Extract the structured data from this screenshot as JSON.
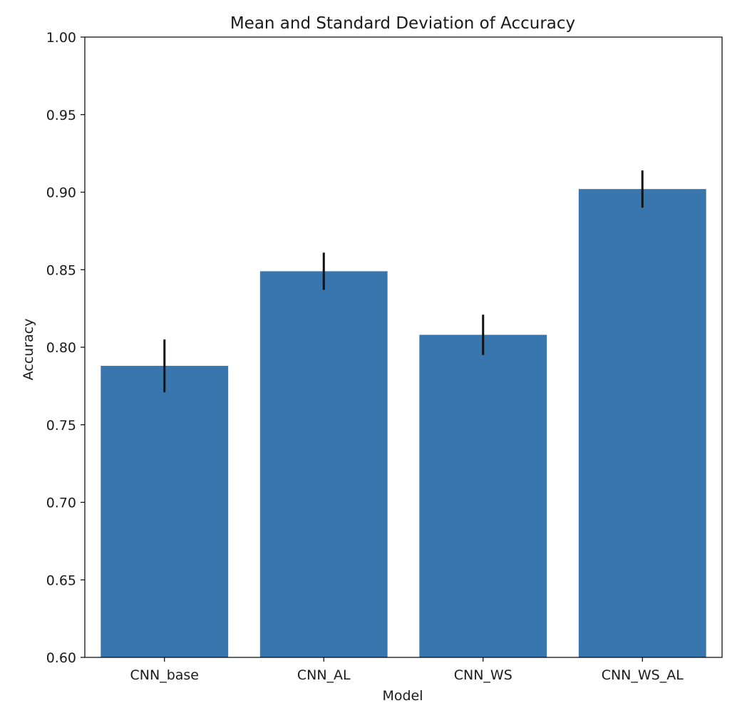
{
  "chart_data": {
    "type": "bar",
    "title": "Mean and Standard Deviation of Accuracy",
    "xlabel": "Model",
    "ylabel": "Accuracy",
    "categories": [
      "CNN_base",
      "CNN_AL",
      "CNN_WS",
      "CNN_WS_AL"
    ],
    "values": [
      0.788,
      0.849,
      0.808,
      0.902
    ],
    "errors": [
      0.017,
      0.012,
      0.013,
      0.012
    ],
    "ylim": [
      0.6,
      1.0
    ],
    "yticks": [
      "0.60",
      "0.65",
      "0.70",
      "0.75",
      "0.80",
      "0.85",
      "0.90",
      "0.95",
      "1.00"
    ],
    "grid": false,
    "bar_color": "#3a76ae",
    "error_color": "#111111"
  }
}
